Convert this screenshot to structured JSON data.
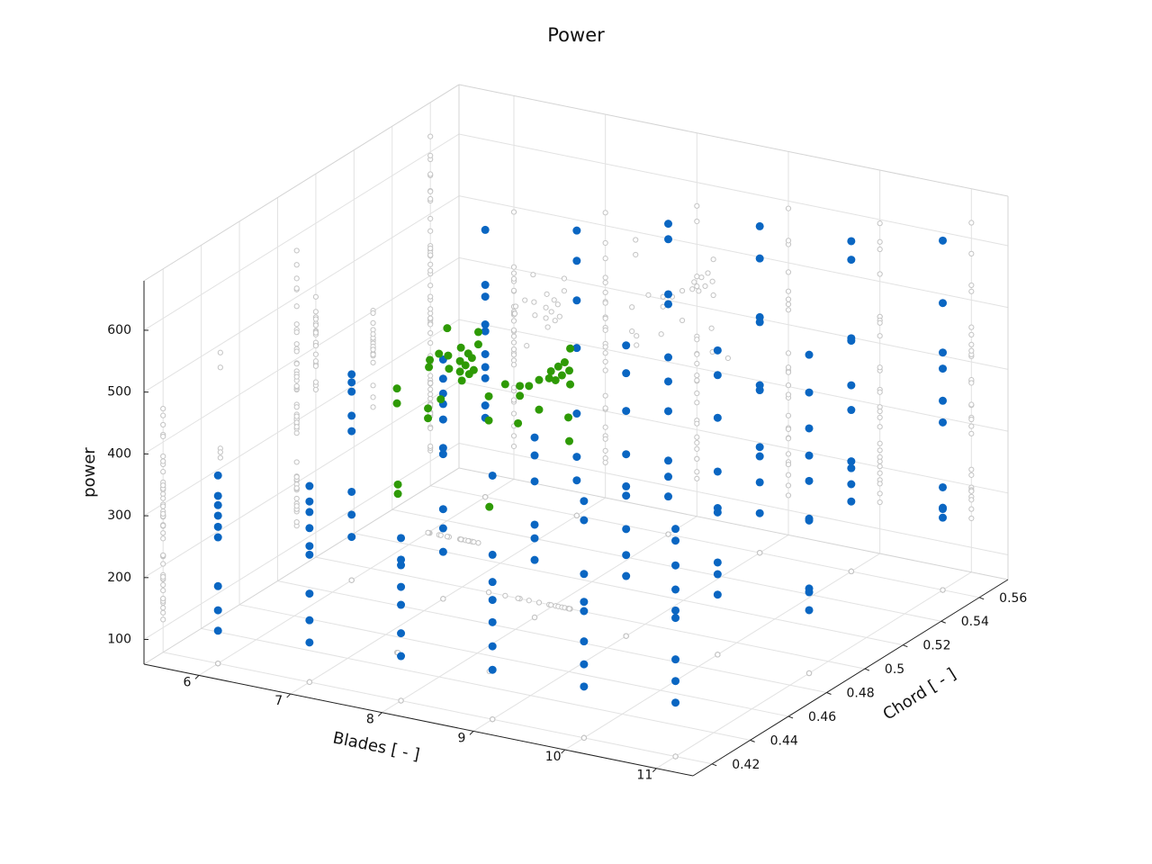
{
  "chart_data": {
    "type": "scatter3d",
    "title": "Power",
    "xlabel": "Blades [ - ]",
    "ylabel": "Chord [ - ]",
    "zlabel": "power",
    "xlim": [
      5.4,
      11.4
    ],
    "ylim": [
      0.41,
      0.575
    ],
    "zlim": [
      60,
      680
    ],
    "xticks": [
      6,
      7,
      8,
      9,
      10,
      11
    ],
    "yticks": [
      0.42,
      0.44,
      0.46,
      0.48,
      0.5,
      0.52,
      0.54,
      0.56
    ],
    "zticks": [
      100,
      200,
      300,
      400,
      500,
      600
    ],
    "grid": true,
    "projections": true,
    "projection_color": "#c4c4c4",
    "series": [
      {
        "color": "#0a66c2",
        "columns": [
          {
            "x": 6,
            "y": 0.42,
            "z": [
              364,
              331,
              316,
              299,
              281,
              264,
              185,
              146,
              113
            ]
          },
          {
            "x": 7,
            "y": 0.42,
            "z": [
              377,
              352,
              335,
              309,
              280,
              266,
              203,
              160,
              124
            ]
          },
          {
            "x": 8,
            "y": 0.42,
            "z": [
              323,
              288,
              279,
              244,
              215,
              169,
              132
            ]
          },
          {
            "x": 9,
            "y": 0.42,
            "z": [
              454,
              326,
              282,
              253,
              217,
              178,
              140
            ]
          },
          {
            "x": 10,
            "y": 0.42,
            "z": [
              443,
              412,
              325,
              280,
              265,
              216,
              179,
              143
            ]
          },
          {
            "x": 11,
            "y": 0.42,
            "z": [
              428,
              409,
              369,
              330,
              296,
              284,
              217,
              182,
              147
            ]
          },
          {
            "x": 6,
            "y": 0.49,
            "z": [
              393,
              380,
              365,
              326,
              301,
              203,
              166,
              130
            ]
          },
          {
            "x": 7,
            "y": 0.49,
            "z": [
              447,
              416,
              392,
              375,
              350,
              304,
              294,
              205,
              174,
              136
            ]
          },
          {
            "x": 8,
            "y": 0.49,
            "z": [
              351,
              322,
              280,
              210,
              188,
              153
            ]
          },
          {
            "x": 9,
            "y": 0.49,
            "z": [
              530,
              485,
              424,
              354,
              302,
              287,
              233,
              191,
              157
            ]
          },
          {
            "x": 10,
            "y": 0.49,
            "z": [
              552,
              512,
              443,
              356,
              297,
              290,
              209,
              190,
              157
            ]
          },
          {
            "x": 11,
            "y": 0.49,
            "z": [
              575,
              514,
              456,
              412,
              371,
              310,
              307,
              197,
              191,
              162
            ]
          },
          {
            "x": 6,
            "y": 0.56,
            "z": [
              492,
              403,
              384,
              339,
              328,
              291,
              270,
              252,
              208,
              188
            ]
          },
          {
            "x": 7,
            "y": 0.56,
            "z": [
              521,
              472,
              408,
              331,
              225,
              155,
              117
            ]
          },
          {
            "x": 8,
            "y": 0.56,
            "z": [
              562,
              537,
              448,
              432,
              346,
              307,
              259,
              179,
              153,
              121
            ]
          },
          {
            "x": 9,
            "y": 0.56,
            "z": [
              588,
              536,
              441,
              433,
              331,
              323,
              231,
              216,
              174,
              124
            ]
          },
          {
            "x": 10,
            "y": 0.56,
            "z": [
              594,
              564,
              437,
              433,
              361,
              321,
              238,
              227,
              201,
              173
            ]
          },
          {
            "x": 11,
            "y": 0.56,
            "z": [
              625,
              524,
              444,
              418,
              366,
              331,
              226,
              193,
              191,
              177
            ]
          }
        ]
      },
      {
        "color": "#2e9a05",
        "points": [
          [
            6.02,
            0.53,
            340
          ],
          [
            6.01,
            0.53,
            328
          ],
          [
            6.12,
            0.53,
            353
          ],
          [
            6.22,
            0.53,
            353
          ],
          [
            6.23,
            0.53,
            332
          ],
          [
            6.35,
            0.53,
            348
          ],
          [
            6.35,
            0.53,
            331
          ],
          [
            6.37,
            0.53,
            317
          ],
          [
            6.41,
            0.53,
            343
          ],
          [
            6.45,
            0.53,
            330
          ],
          [
            6.48,
            0.53,
            357
          ],
          [
            6.5,
            0.53,
            338
          ],
          [
            6.55,
            0.53,
            401
          ],
          [
            6.55,
            0.53,
            381
          ],
          [
            6.21,
            0.53,
            397
          ],
          [
            6.0,
            0.53,
            261
          ],
          [
            6.0,
            0.53,
            245
          ],
          [
            6.14,
            0.53,
            280
          ],
          [
            6.36,
            0.53,
            370
          ],
          [
            6.44,
            0.53,
            363
          ],
          [
            7.63,
            0.5,
            404
          ],
          [
            7.63,
            0.5,
            388
          ],
          [
            7.73,
            0.5,
            407
          ],
          [
            7.84,
            0.5,
            420
          ],
          [
            7.84,
            0.5,
            372
          ],
          [
            7.95,
            0.5,
            426
          ],
          [
            7.97,
            0.5,
            438
          ],
          [
            8.02,
            0.5,
            425
          ],
          [
            8.05,
            0.5,
            448
          ],
          [
            8.09,
            0.5,
            435
          ],
          [
            8.12,
            0.5,
            457
          ],
          [
            8.17,
            0.5,
            445
          ],
          [
            8.18,
            0.5,
            481
          ],
          [
            8.18,
            0.5,
            423
          ],
          [
            8.16,
            0.5,
            369
          ],
          [
            7.29,
            0.5,
            377
          ],
          [
            7.29,
            0.5,
            338
          ],
          [
            7.47,
            0.5,
            402
          ],
          [
            7.61,
            0.5,
            343
          ],
          [
            8.17,
            0.5,
            331
          ],
          [
            7.33,
            0.45,
            487
          ],
          [
            7.33,
            0.45,
            463
          ],
          [
            7.34,
            0.45,
            332
          ],
          [
            7.34,
            0.45,
            317
          ],
          [
            8.34,
            0.45,
            326
          ]
        ]
      }
    ]
  }
}
